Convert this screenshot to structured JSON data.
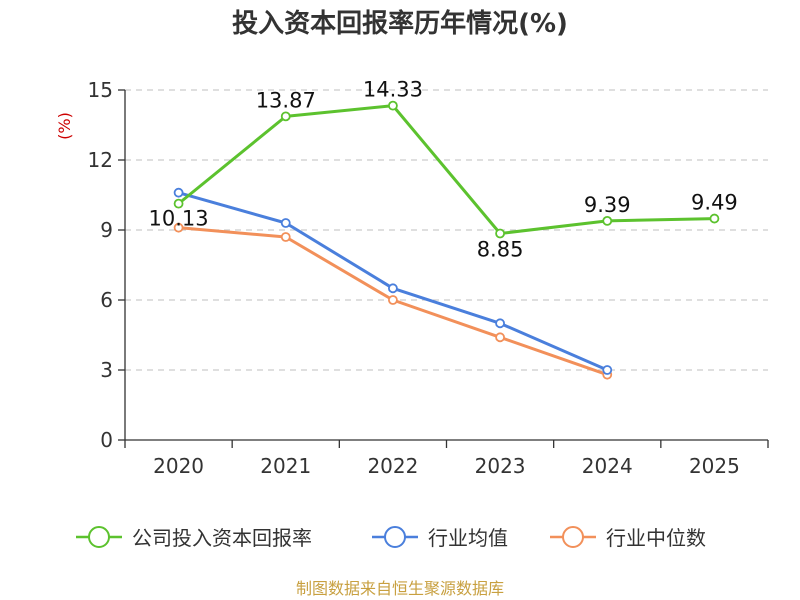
{
  "chart_data": {
    "type": "line",
    "title": "投入资本回报率历年情况(%)",
    "ylabel": "(%)",
    "xlabel": "",
    "ylim": [
      0,
      15
    ],
    "yticks": [
      0,
      3,
      6,
      9,
      12,
      15
    ],
    "categories": [
      "2020",
      "2021",
      "2022",
      "2023",
      "2024",
      "2025"
    ],
    "grid": true,
    "legend_position": "bottom",
    "series": [
      {
        "name": "公司投入资本回报率",
        "color": "#5cc22e",
        "values": [
          10.13,
          13.87,
          14.33,
          8.85,
          9.39,
          9.49
        ],
        "labels": [
          "10.13",
          "13.87",
          "14.33",
          "8.85",
          "9.39",
          "9.49"
        ]
      },
      {
        "name": "行业均值",
        "color": "#4a7fdc",
        "values": [
          10.6,
          9.3,
          6.5,
          5.0,
          3.0,
          null
        ],
        "labels": null
      },
      {
        "name": "行业中位数",
        "color": "#f2905a",
        "values": [
          9.1,
          8.7,
          6.0,
          4.4,
          2.8,
          null
        ],
        "labels": null
      }
    ],
    "source": "制图数据来自恒生聚源数据库"
  }
}
